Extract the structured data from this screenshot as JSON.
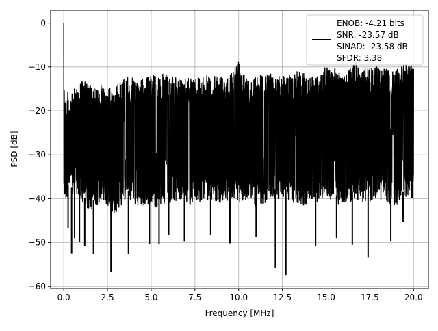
{
  "chart_data": {
    "type": "line",
    "title": "",
    "xlabel": "Frequency [MHz]",
    "ylabel": "PSD [dB]",
    "xlim": [
      -0.75,
      20.85
    ],
    "ylim": [
      -60.5,
      2.9
    ],
    "xticks": [
      0.0,
      2.5,
      5.0,
      7.5,
      10.0,
      12.5,
      15.0,
      17.5,
      20.0
    ],
    "xtick_labels": [
      "0.0",
      "2.5",
      "5.0",
      "7.5",
      "10.0",
      "12.5",
      "15.0",
      "17.5",
      "20.0"
    ],
    "yticks": [
      0,
      -10,
      -20,
      -30,
      -40,
      -50,
      -60
    ],
    "ytick_labels": [
      "0",
      "−10",
      "−20",
      "−30",
      "−40",
      "−50",
      "−60"
    ],
    "grid": true,
    "legend_position": "upper right",
    "legend_entries": [
      "ENOB: -4.21 bits",
      "SNR: -23.57 dB",
      "SINAD: -23.58 dB",
      "SFDR: 3.38"
    ],
    "line_color": "#000000",
    "series": [
      {
        "x": [
          0.0,
          0.02,
          0.05,
          0.1,
          0.2,
          0.3,
          0.5,
          0.6,
          1.0,
          1.5,
          1.8,
          2.2,
          2.8,
          3.6,
          4.2,
          5.0,
          5.2,
          6.0,
          6.8,
          7.0,
          7.5,
          8.0,
          9.0,
          9.6,
          10.0,
          10.7,
          11.0,
          11.5,
          12.1,
          12.7,
          13.4,
          14.3,
          15.0,
          15.5,
          15.9,
          16.7,
          17.0,
          17.3,
          18.0,
          18.8,
          19.2,
          19.6,
          20.0
        ],
        "upper": [
          0,
          -8,
          -14,
          -16,
          -15,
          -17,
          -16,
          -15,
          -13,
          -14,
          -15,
          -14,
          -15,
          -12,
          -13,
          -12,
          -11,
          -12,
          -13,
          -12,
          -12,
          -12,
          -12,
          -11,
          -8,
          -13,
          -12,
          -11,
          -12,
          -12,
          -11,
          -12,
          -10,
          -10,
          -12,
          -9,
          -11,
          -10,
          -10,
          -11,
          -10,
          -9,
          -9
        ],
        "lower": [
          -38,
          -39,
          -40,
          -41,
          -40,
          -38,
          -40,
          -38,
          -41,
          -43,
          -42,
          -40,
          -44,
          -40,
          -42,
          -41,
          -42,
          -41,
          -40,
          -41,
          -42,
          -40,
          -41,
          -40,
          -41,
          -40,
          -42,
          -41,
          -40,
          -40,
          -42,
          -41,
          -40,
          -41,
          -42,
          -40,
          -41,
          -41,
          -40,
          -42,
          -41,
          -40,
          -40
        ],
        "dips": [
          [
            0.25,
            -46.7
          ],
          [
            0.45,
            -52.5
          ],
          [
            0.62,
            -49.0
          ],
          [
            0.9,
            -49.9
          ],
          [
            1.2,
            -50.7
          ],
          [
            1.7,
            -52.6
          ],
          [
            2.7,
            -56.6
          ],
          [
            3.7,
            -52.7
          ],
          [
            4.9,
            -50.4
          ],
          [
            5.45,
            -50.4
          ],
          [
            6.0,
            -48.3
          ],
          [
            6.9,
            -49.8
          ],
          [
            8.4,
            -48.3
          ],
          [
            9.5,
            -50.3
          ],
          [
            11.0,
            -48.8
          ],
          [
            12.1,
            -55.8
          ],
          [
            12.7,
            -57.4
          ],
          [
            14.4,
            -50.8
          ],
          [
            15.6,
            -49.0
          ],
          [
            16.5,
            -50.5
          ],
          [
            17.4,
            -53.4
          ],
          [
            18.7,
            -49.6
          ],
          [
            19.4,
            -45.3
          ]
        ]
      }
    ]
  }
}
